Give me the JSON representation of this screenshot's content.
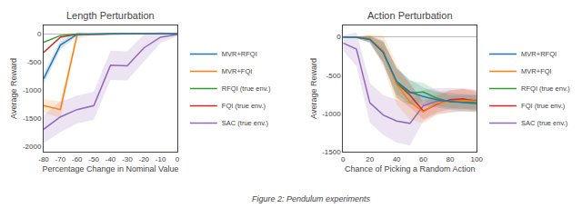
{
  "chart_data": [
    {
      "type": "line",
      "title": "Length Perturbation",
      "xlabel": "Percentage Change in Nominal Value",
      "ylabel": "Average Reward",
      "x": [
        -80,
        -70,
        -60,
        -50,
        -40,
        -30,
        -20,
        -10,
        0
      ],
      "series": [
        {
          "name": "MVR+RFQI",
          "color": "#1f77b4",
          "values": [
            -800,
            -200,
            -10,
            -2,
            -1,
            0,
            0,
            0,
            0
          ],
          "low": [
            -900,
            -280,
            -40,
            -8,
            -3,
            -1,
            0,
            0,
            0
          ],
          "high": [
            -700,
            -120,
            20,
            4,
            1,
            1,
            0,
            0,
            0
          ]
        },
        {
          "name": "MVR+FQI",
          "color": "#ff7f0e",
          "values": [
            -1280,
            -1350,
            -20,
            -5,
            -2,
            -1,
            0,
            0,
            0
          ],
          "low": [
            -1400,
            -1500,
            -80,
            -20,
            -8,
            -4,
            -1,
            0,
            0
          ],
          "high": [
            -1160,
            -1200,
            40,
            10,
            4,
            2,
            1,
            0,
            0
          ]
        },
        {
          "name": "RFQI (true env.)",
          "color": "#2ca02c",
          "values": [
            -150,
            -30,
            -5,
            -1,
            0,
            0,
            0,
            0,
            0
          ]
        },
        {
          "name": "FQI (true env.)",
          "color": "#d62728",
          "values": [
            -330,
            -60,
            -10,
            -2,
            -1,
            0,
            0,
            0,
            0
          ]
        },
        {
          "name": "SAC (true env.)",
          "color": "#9467bd",
          "values": [
            -1700,
            -1480,
            -1350,
            -1280,
            -560,
            -570,
            -250,
            -60,
            -10
          ],
          "low": [
            -1950,
            -1750,
            -1600,
            -1530,
            -820,
            -830,
            -500,
            -160,
            -40
          ],
          "high": [
            -1450,
            -1210,
            -1100,
            -1030,
            -300,
            -310,
            -10,
            40,
            10
          ]
        }
      ],
      "xlim": [
        -80,
        0
      ],
      "xticks": [
        -80,
        -70,
        -60,
        -50,
        -40,
        -30,
        -20,
        -10,
        0
      ],
      "ylim": [
        -2100,
        150
      ],
      "yticks": [
        -2000,
        -1500,
        -1000,
        -500,
        0
      ],
      "grid": false,
      "legend": "right"
    },
    {
      "type": "line",
      "title": "Action Perturbation",
      "xlabel": "Chance of Picking a Random Action",
      "ylabel": "Average Reward",
      "x": [
        0,
        10,
        20,
        30,
        40,
        50,
        60,
        70,
        80,
        90,
        100
      ],
      "series": [
        {
          "name": "MVR+RFQI",
          "color": "#1f77b4",
          "values": [
            0,
            -5,
            -30,
            -200,
            -580,
            -720,
            -780,
            -820,
            -840,
            -860,
            -870
          ],
          "low": [
            0,
            -15,
            -80,
            -350,
            -750,
            -880,
            -900,
            -920,
            -950,
            -970,
            -980
          ],
          "high": [
            0,
            5,
            20,
            -50,
            -410,
            -560,
            -660,
            -720,
            -730,
            -750,
            -760
          ]
        },
        {
          "name": "MVR+FQI",
          "color": "#ff7f0e",
          "values": [
            0,
            -5,
            -20,
            -180,
            -620,
            -850,
            -980,
            -870,
            -840,
            -830,
            -840
          ],
          "low": [
            0,
            -15,
            -70,
            -380,
            -880,
            -1080,
            -1130,
            -1020,
            -980,
            -980,
            -980
          ],
          "high": [
            0,
            5,
            30,
            20,
            -360,
            -620,
            -830,
            -720,
            -700,
            -680,
            -700
          ]
        },
        {
          "name": "RFQI (true env.)",
          "color": "#2ca02c",
          "values": [
            0,
            -5,
            -30,
            -200,
            -600,
            -730,
            -720,
            -800,
            -850,
            -850,
            -850
          ],
          "low": [
            0,
            -15,
            -70,
            -330,
            -800,
            -890,
            -840,
            -900,
            -930,
            -940,
            -940
          ],
          "high": [
            0,
            5,
            10,
            -70,
            -400,
            -570,
            -600,
            -700,
            -770,
            -760,
            -760
          ]
        },
        {
          "name": "FQI (true env.)",
          "color": "#d62728",
          "values": [
            0,
            -5,
            -30,
            -200,
            -600,
            -760,
            -970,
            -880,
            -820,
            -810,
            -840
          ],
          "low": [
            0,
            -15,
            -70,
            -340,
            -790,
            -920,
            -1080,
            -990,
            -940,
            -940,
            -960
          ],
          "high": [
            0,
            5,
            10,
            -60,
            -410,
            -600,
            -860,
            -770,
            -700,
            -680,
            -720
          ]
        },
        {
          "name": "SAC (true env.)",
          "color": "#9467bd",
          "values": [
            -80,
            -160,
            -860,
            -1020,
            -1100,
            -1130,
            -900,
            -840,
            -830,
            -820,
            -830
          ],
          "low": [
            -180,
            -380,
            -1120,
            -1280,
            -1380,
            -1420,
            -1100,
            -1010,
            -990,
            -970,
            -970
          ],
          "high": [
            20,
            60,
            -600,
            -760,
            -820,
            -840,
            -700,
            -670,
            -670,
            -670,
            -690
          ]
        }
      ],
      "xlim": [
        0,
        100
      ],
      "xticks": [
        0,
        20,
        40,
        60,
        80,
        100
      ],
      "ylim": [
        -1500,
        150
      ],
      "yticks": [
        -1500,
        -1000,
        -500,
        0
      ],
      "grid": false,
      "legend": "right"
    }
  ],
  "caption": "Figure 2: Pendulum experiments"
}
